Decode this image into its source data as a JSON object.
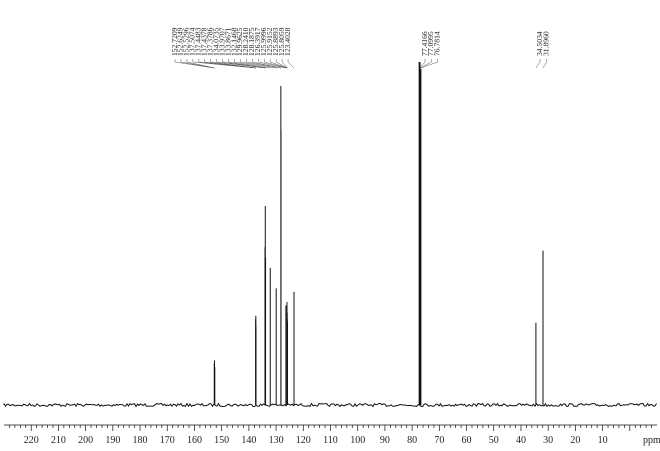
{
  "chart_data": {
    "type": "line",
    "title": "",
    "xlabel": "ppm",
    "ylabel": "",
    "xlim": [
      230,
      -10
    ],
    "x_reversed": true,
    "grid": false,
    "legend": "none",
    "ticks": [
      220,
      210,
      200,
      190,
      180,
      170,
      160,
      150,
      140,
      130,
      120,
      110,
      100,
      90,
      80,
      70,
      60,
      50,
      40,
      30,
      20,
      10
    ],
    "tick_labels": [
      "220",
      "210",
      "200",
      "190",
      "180",
      "170",
      "160",
      "150",
      "140",
      "130",
      "120",
      "110",
      "100",
      "90",
      "80",
      "70",
      "60",
      "50",
      "40",
      "30",
      "20",
      "10"
    ],
    "peaks": [
      {
        "ppm": 152.7209,
        "intensity": 0.12
      },
      {
        "ppm": 152.6249,
        "intensity": 0.13
      },
      {
        "ppm": 152.5296,
        "intensity": 0.11
      },
      {
        "ppm": 137.5074,
        "intensity": 0.25
      },
      {
        "ppm": 137.4483,
        "intensity": 0.26
      },
      {
        "ppm": 137.4378,
        "intensity": 0.23
      },
      {
        "ppm": 137.3786,
        "intensity": 0.22
      },
      {
        "ppm": 134.0735,
        "intensity": 0.46
      },
      {
        "ppm": 133.9707,
        "intensity": 0.58
      },
      {
        "ppm": 133.8671,
        "intensity": 0.43
      },
      {
        "ppm": 132.1468,
        "intensity": 0.4
      },
      {
        "ppm": 129.9625,
        "intensity": 0.34
      },
      {
        "ppm": 128.241,
        "intensity": 0.93
      },
      {
        "ppm": 128.1875,
        "intensity": 0.8
      },
      {
        "ppm": 126.3917,
        "intensity": 0.29
      },
      {
        "ppm": 125.9996,
        "intensity": 0.3
      },
      {
        "ppm": 125.9152,
        "intensity": 0.27
      },
      {
        "ppm": 125.8893,
        "intensity": 0.25
      },
      {
        "ppm": 125.8059,
        "intensity": 0.24
      },
      {
        "ppm": 123.4028,
        "intensity": 0.33
      },
      {
        "ppm": 77.4166,
        "intensity": 1.0
      },
      {
        "ppm": 77.0995,
        "intensity": 1.0
      },
      {
        "ppm": 76.7814,
        "intensity": 0.98
      },
      {
        "ppm": 34.5034,
        "intensity": 0.24
      },
      {
        "ppm": 31.896,
        "intensity": 0.45
      }
    ],
    "label_groups": [
      {
        "labels": [
          "152.7209",
          "152.6249",
          "152.5296",
          "137.5074",
          "137.4483",
          "137.4378",
          "137.3786",
          "134.0735",
          "133.9707",
          "133.8671",
          "132.1468",
          "129.9625",
          "128.2410",
          "128.1875",
          "126.3917",
          "125.9996",
          "125.9152",
          "125.8893",
          "125.8059",
          "123.4028"
        ],
        "ppm": [
          152.7209,
          152.6249,
          152.5296,
          137.5074,
          137.4483,
          137.4378,
          137.3786,
          134.0735,
          133.9707,
          133.8671,
          132.1468,
          129.9625,
          128.241,
          128.1875,
          126.3917,
          125.9996,
          125.9152,
          125.8893,
          125.8059,
          123.4028
        ]
      },
      {
        "labels": [
          "77.4166",
          "77.0995",
          "76.7814"
        ],
        "ppm": [
          77.4166,
          77.0995,
          76.7814
        ]
      },
      {
        "labels": [
          "34.5034",
          "31.8960"
        ],
        "ppm": [
          34.5034,
          31.896
        ]
      }
    ]
  }
}
